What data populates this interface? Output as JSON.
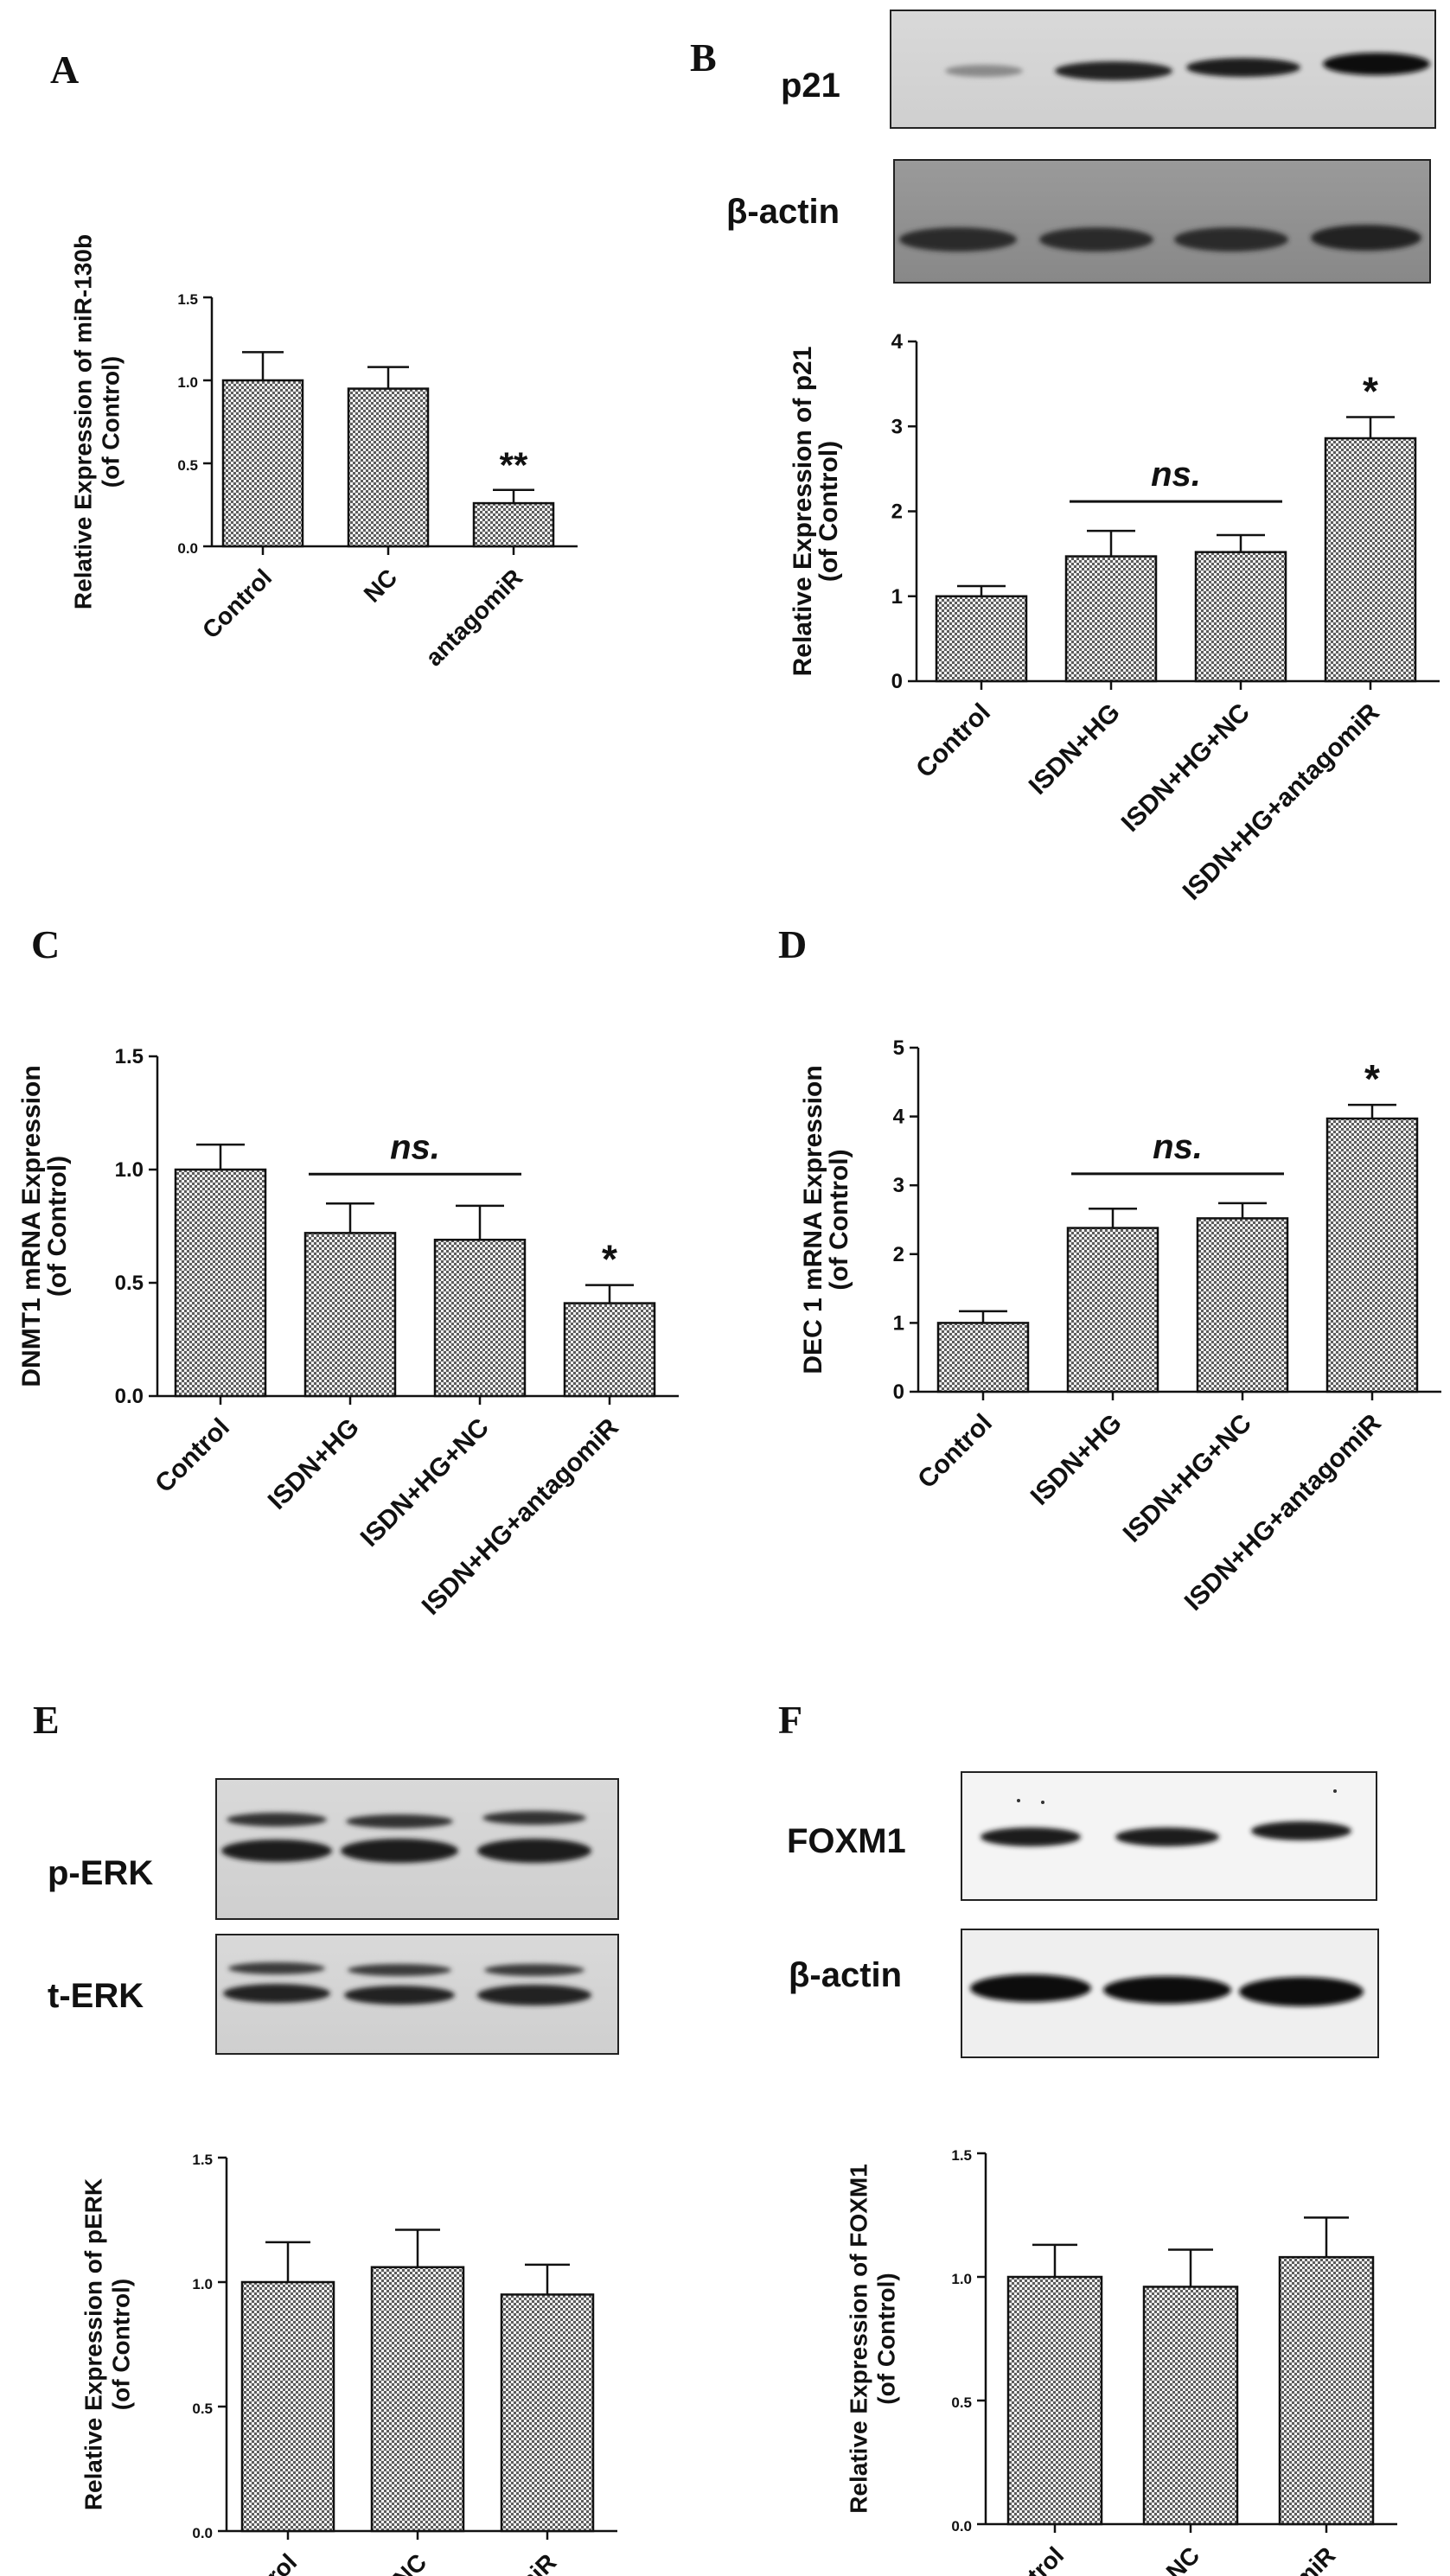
{
  "figure": {
    "panels": {
      "A": {
        "letter": "A"
      },
      "B": {
        "letter": "B",
        "blots": [
          "p21",
          "β-actin"
        ]
      },
      "C": {
        "letter": "C"
      },
      "D": {
        "letter": "D"
      },
      "E": {
        "letter": "E",
        "blots": [
          "p-ERK",
          "t-ERK"
        ]
      },
      "F": {
        "letter": "F",
        "blots": [
          "FOXM1",
          "β-actin"
        ]
      }
    }
  },
  "chart_data": [
    {
      "panel": "A",
      "type": "bar",
      "categories": [
        "Control",
        "NC",
        "antagomiR"
      ],
      "values": [
        1.0,
        0.95,
        0.26
      ],
      "errors": [
        0.17,
        0.13,
        0.08
      ],
      "significance": [
        "",
        "",
        "**"
      ],
      "ylabel": [
        "Relative Expression of miR-130b",
        "(of Control)"
      ],
      "ylim": [
        0,
        1.5
      ],
      "yticks": [
        "0.0",
        "0.5",
        "1.0",
        "1.5"
      ],
      "ns_bracket": null
    },
    {
      "panel": "B",
      "type": "bar",
      "categories": [
        "Control",
        "ISDN+HG",
        "ISDN+HG+NC",
        "ISDN+HG+antagomiR"
      ],
      "values": [
        1.0,
        1.47,
        1.52,
        2.86
      ],
      "errors": [
        0.12,
        0.3,
        0.2,
        0.25
      ],
      "significance": [
        "",
        "",
        "",
        "*"
      ],
      "ylabel": [
        "Relative Expression of p21",
        "(of Control)"
      ],
      "ylim": [
        0,
        4
      ],
      "yticks": [
        "0",
        "1",
        "2",
        "3",
        "4"
      ],
      "ns_bracket": {
        "label": "ns.",
        "from": 1,
        "to": 2
      }
    },
    {
      "panel": "C",
      "type": "bar",
      "categories": [
        "Control",
        "ISDN+HG",
        "ISDN+HG+NC",
        "ISDN+HG+antagomiR"
      ],
      "values": [
        1.0,
        0.72,
        0.69,
        0.41
      ],
      "errors": [
        0.11,
        0.13,
        0.15,
        0.08
      ],
      "significance": [
        "",
        "",
        "",
        "*"
      ],
      "ylabel": [
        "DNMT1  mRNA  Expression",
        "(of Control)"
      ],
      "ylim": [
        0,
        1.5
      ],
      "yticks": [
        "0.0",
        "0.5",
        "1.0",
        "1.5"
      ],
      "ns_bracket": {
        "label": "ns.",
        "from": 1,
        "to": 2
      }
    },
    {
      "panel": "D",
      "type": "bar",
      "categories": [
        "Control",
        "ISDN+HG",
        "ISDN+HG+NC",
        "ISDN+HG+antagomiR"
      ],
      "values": [
        1.0,
        2.38,
        2.52,
        3.97
      ],
      "errors": [
        0.17,
        0.28,
        0.22,
        0.2
      ],
      "significance": [
        "",
        "",
        "",
        "*"
      ],
      "ylabel": [
        "DEC 1 mRNA  Expression",
        "(of Control)"
      ],
      "ylim": [
        0,
        5
      ],
      "yticks": [
        "0",
        "1",
        "2",
        "3",
        "4",
        "5"
      ],
      "ns_bracket": {
        "label": "ns.",
        "from": 1,
        "to": 2
      }
    },
    {
      "panel": "E",
      "type": "bar",
      "categories": [
        "Control",
        "NC",
        "antagomiR"
      ],
      "values": [
        1.0,
        1.06,
        0.95
      ],
      "errors": [
        0.16,
        0.15,
        0.12
      ],
      "significance": [
        "",
        "",
        ""
      ],
      "ylabel": [
        "Relative Expression of pERK",
        "(of Control)"
      ],
      "ylim": [
        0,
        1.5
      ],
      "yticks": [
        "0.0",
        "0.5",
        "1.0",
        "1.5"
      ],
      "ns_bracket": null
    },
    {
      "panel": "F",
      "type": "bar",
      "categories": [
        "Control",
        "NC",
        "antagomiR"
      ],
      "values": [
        1.0,
        0.96,
        1.08
      ],
      "errors": [
        0.13,
        0.15,
        0.16
      ],
      "significance": [
        "",
        "",
        ""
      ],
      "ylabel": [
        "Relative Expression of FOXM1",
        "(of Control)"
      ],
      "ylim": [
        0,
        1.5
      ],
      "yticks": [
        "0.0",
        "0.5",
        "1.0",
        "1.5"
      ],
      "ns_bracket": null
    }
  ]
}
